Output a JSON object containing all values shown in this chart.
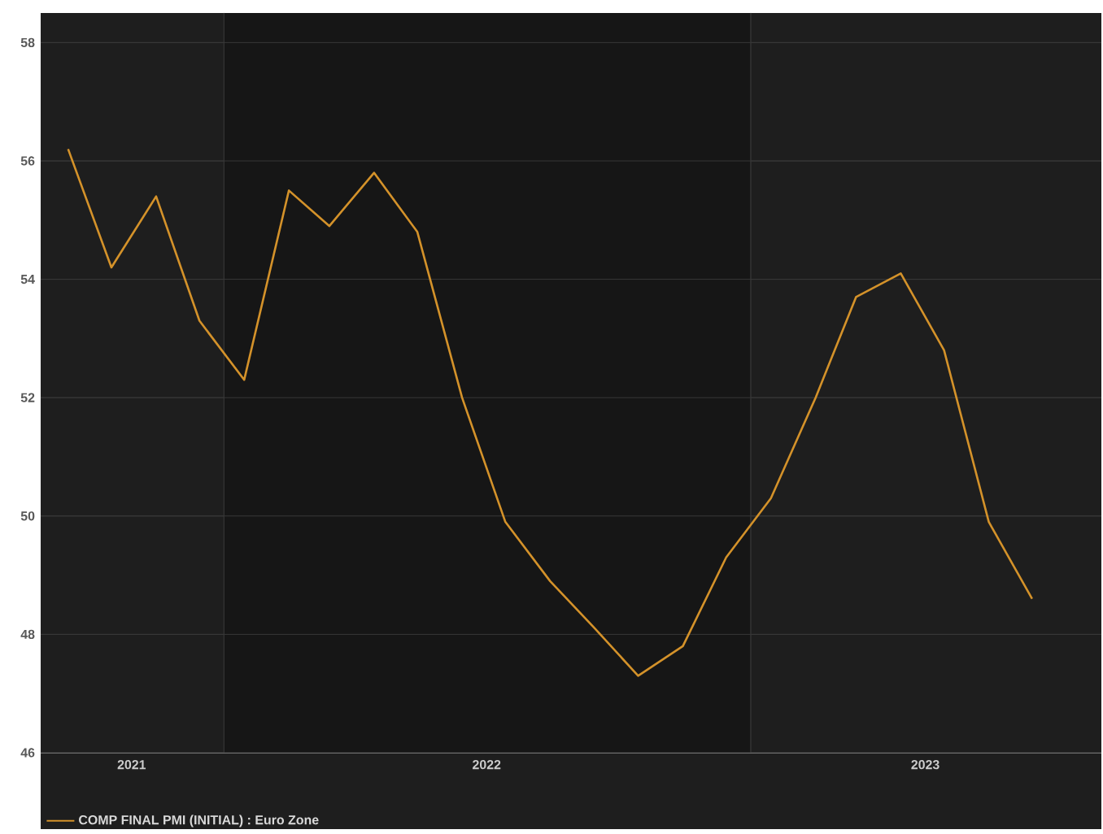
{
  "chart_data": {
    "type": "line",
    "x": [
      "2021-09-15",
      "2021-10-15",
      "2021-11-15",
      "2021-12-15",
      "2022-01-15",
      "2022-02-15",
      "2022-03-15",
      "2022-04-15",
      "2022-05-15",
      "2022-06-15",
      "2022-07-15",
      "2022-08-15",
      "2022-09-15",
      "2022-10-15",
      "2022-11-15",
      "2022-12-15",
      "2023-01-15",
      "2023-02-15",
      "2023-03-15",
      "2023-04-15",
      "2023-05-15",
      "2023-06-15",
      "2023-07-15"
    ],
    "series": [
      {
        "name": "COMP FINAL PMI (INITIAL) : Euro Zone",
        "color": "#d4922a",
        "values": [
          56.2,
          54.2,
          55.4,
          53.3,
          52.3,
          55.5,
          54.9,
          55.8,
          54.8,
          52.0,
          49.9,
          48.9,
          48.1,
          47.3,
          47.8,
          49.3,
          50.3,
          52.0,
          53.7,
          54.1,
          52.8,
          49.9,
          48.6
        ]
      }
    ],
    "xlim": [
      "2021-08-27",
      "2023-09-01"
    ],
    "xticks": [
      {
        "value": "2021-10-29",
        "label": "2021"
      },
      {
        "value": "2022-01-01",
        "label": null
      },
      {
        "value": "2022-07-02",
        "label": "2022"
      },
      {
        "value": "2023-01-01",
        "label": null
      },
      {
        "value": "2023-05-02",
        "label": "2023"
      }
    ],
    "ylim": [
      46,
      58.5
    ],
    "yticks": [
      46,
      48,
      50,
      52,
      54,
      56,
      58
    ],
    "grid": true,
    "legend": "bottom left",
    "marker": "none",
    "line_style": "solid",
    "bands": [
      {
        "axis": "x",
        "from": "2022-01-01",
        "to": "2023-01-01",
        "color": "#161616"
      }
    ]
  }
}
